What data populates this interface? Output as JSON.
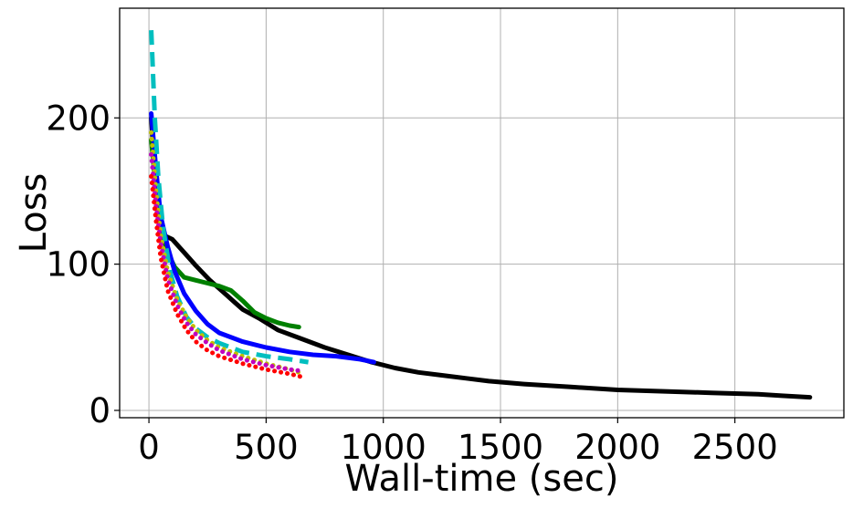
{
  "chart_data": {
    "type": "line",
    "title": "",
    "xlabel": "Wall-time (sec)",
    "ylabel": "Loss",
    "xlim": [
      -125,
      2965
    ],
    "ylim": [
      -5,
      275
    ],
    "grid": true,
    "xticks": [
      0,
      500,
      1000,
      1500,
      2000,
      2500
    ],
    "yticks": [
      0,
      100,
      200
    ],
    "series": [
      {
        "color": "#000000",
        "style": "solid",
        "x": [
          10,
          30,
          60,
          100,
          150,
          200,
          260,
          330,
          400,
          470,
          550,
          650,
          750,
          850,
          950,
          1050,
          1150,
          1250,
          1350,
          1450,
          1600,
          1800,
          2000,
          2200,
          2400,
          2600,
          2700,
          2820
        ],
        "y": [
          200,
          150,
          120,
          117,
          108,
          99,
          89,
          79,
          69,
          63,
          55,
          49,
          43,
          38,
          33,
          29,
          26,
          24,
          22,
          20,
          18,
          16,
          14,
          13,
          12,
          11,
          10,
          9
        ]
      },
      {
        "color": "#008000",
        "style": "solid",
        "x": [
          10,
          30,
          50,
          80,
          110,
          150,
          200,
          250,
          300,
          350,
          400,
          450,
          500,
          550,
          600,
          640
        ],
        "y": [
          185,
          150,
          125,
          108,
          98,
          91,
          89,
          87,
          85,
          82,
          75,
          67,
          63,
          60,
          58,
          57
        ]
      },
      {
        "color": "#0000ff",
        "style": "solid",
        "x": [
          10,
          30,
          50,
          80,
          110,
          150,
          200,
          250,
          300,
          400,
          500,
          600,
          700,
          800,
          900,
          960
        ],
        "y": [
          203,
          165,
          133,
          112,
          95,
          80,
          68,
          59,
          53,
          47,
          43,
          40,
          38,
          37,
          35,
          33
        ]
      },
      {
        "color": "#00bfbf",
        "style": "dashed",
        "x": [
          10,
          25,
          40,
          60,
          90,
          120,
          160,
          200,
          250,
          300,
          400,
          500,
          600,
          680
        ],
        "y": [
          260,
          200,
          160,
          125,
          95,
          78,
          64,
          56,
          50,
          46,
          40,
          37,
          35,
          33
        ]
      },
      {
        "color": "#bfbf00",
        "style": "dotted",
        "x": [
          10,
          30,
          50,
          80,
          120,
          160,
          200,
          250,
          300,
          400,
          500,
          600,
          640
        ],
        "y": [
          190,
          150,
          120,
          95,
          76,
          64,
          55,
          48,
          43,
          37,
          32,
          28,
          26
        ]
      },
      {
        "color": "#bf00bf",
        "style": "dotted",
        "x": [
          10,
          30,
          50,
          80,
          120,
          160,
          200,
          250,
          300,
          400,
          500,
          600,
          650
        ],
        "y": [
          175,
          140,
          115,
          90,
          72,
          60,
          52,
          46,
          41,
          35,
          31,
          28,
          27
        ]
      },
      {
        "color": "#ff0000",
        "style": "dotted",
        "x": [
          10,
          30,
          50,
          80,
          120,
          160,
          200,
          250,
          300,
          400,
          500,
          600,
          650
        ],
        "y": [
          160,
          130,
          105,
          82,
          66,
          55,
          47,
          41,
          37,
          32,
          28,
          25,
          23
        ]
      }
    ]
  }
}
